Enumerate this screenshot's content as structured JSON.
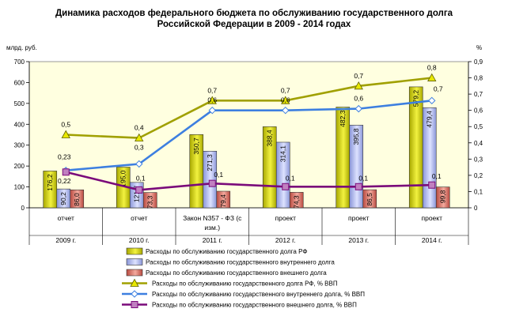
{
  "chart_data": {
    "type": "bar",
    "title_lines": [
      "Динамика расходов федерального бюджета по обслуживанию государственного долга",
      "Российской Федерации в 2009 - 2014 годах"
    ],
    "y_left_label": "млрд. руб.",
    "y_right_label": "%",
    "y_left_range": [
      0,
      700
    ],
    "y_left_ticks": [
      "0",
      "100",
      "200",
      "300",
      "400",
      "500",
      "600",
      "700"
    ],
    "y_right_range": [
      0,
      0.9
    ],
    "y_right_ticks": [
      "0",
      "0,1",
      "0,2",
      "0,3",
      "0,4",
      "0,5",
      "0,6",
      "0,7",
      "0,8",
      "0,9"
    ],
    "categories": [
      {
        "status": "отчет",
        "status2": "",
        "year": "2009 г."
      },
      {
        "status": "отчет",
        "status2": "",
        "year": "2010 г."
      },
      {
        "status": "Закон N357 - ФЗ (с",
        "status2": "изм.)",
        "year": "2011 г."
      },
      {
        "status": "проект",
        "status2": "",
        "year": "2012 г."
      },
      {
        "status": "проект",
        "status2": "",
        "year": "2013 г."
      },
      {
        "status": "проект",
        "status2": "",
        "year": "2014 г."
      }
    ],
    "bar_series": [
      {
        "name": "Расходы по обслуживанию государственного долга РФ",
        "color": "#d4d400",
        "values": [
          176.2,
          195.0,
          350.7,
          388.4,
          482.3,
          579.2
        ],
        "labels": [
          "176,2",
          "195,0",
          "350,7",
          "388,4",
          "482,3",
          "579,2"
        ]
      },
      {
        "name": "Расходы по обслуживанию государственного внутреннего долга",
        "color": "#aab4ee",
        "values": [
          90.2,
          121.7,
          271.3,
          314.1,
          395.8,
          479.4
        ],
        "labels": [
          "90,2",
          "121,7",
          "271,3",
          "314,1",
          "395,8",
          "479,4"
        ]
      },
      {
        "name": "Расходы по  обслуживанию государственного внешнего долга",
        "color": "#e07a6e",
        "values": [
          86.0,
          73.3,
          79.4,
          74.3,
          86.5,
          99.8
        ],
        "labels": [
          "86,0",
          "73,3",
          "79,4",
          "74,3",
          "86,5",
          "99,8"
        ]
      }
    ],
    "line_series": [
      {
        "name": "Расходы по обслуживанию государственного долга РФ, %  ВВП",
        "color": "#a0a000",
        "marker": "triangle",
        "values": [
          0.45,
          0.43,
          0.66,
          0.66,
          0.75,
          0.8
        ],
        "labels": [
          "0,5",
          "0,4",
          "0,7",
          "0,7",
          "0,7",
          "0,8"
        ]
      },
      {
        "name": "Расходы по обслуживанию государственного внутреннего долга,  %  ВВП",
        "color": "#3d7fe0",
        "marker": "diamond",
        "values": [
          0.23,
          0.27,
          0.6,
          0.6,
          0.61,
          0.66
        ],
        "labels": [
          "0,23",
          "0,3",
          "0,6",
          "0,6",
          "0,6",
          "0,7"
        ]
      },
      {
        "name": "Расходы по  обслуживанию государственного внешнего долга, %  ВВП",
        "color": "#7a0a7a",
        "marker": "square",
        "values": [
          0.22,
          0.11,
          0.15,
          0.13,
          0.13,
          0.14
        ],
        "labels": [
          "0,22",
          "0,1",
          "0,1",
          "0,1",
          "0,1",
          "0,1"
        ]
      }
    ],
    "legend_position": "bottom"
  }
}
